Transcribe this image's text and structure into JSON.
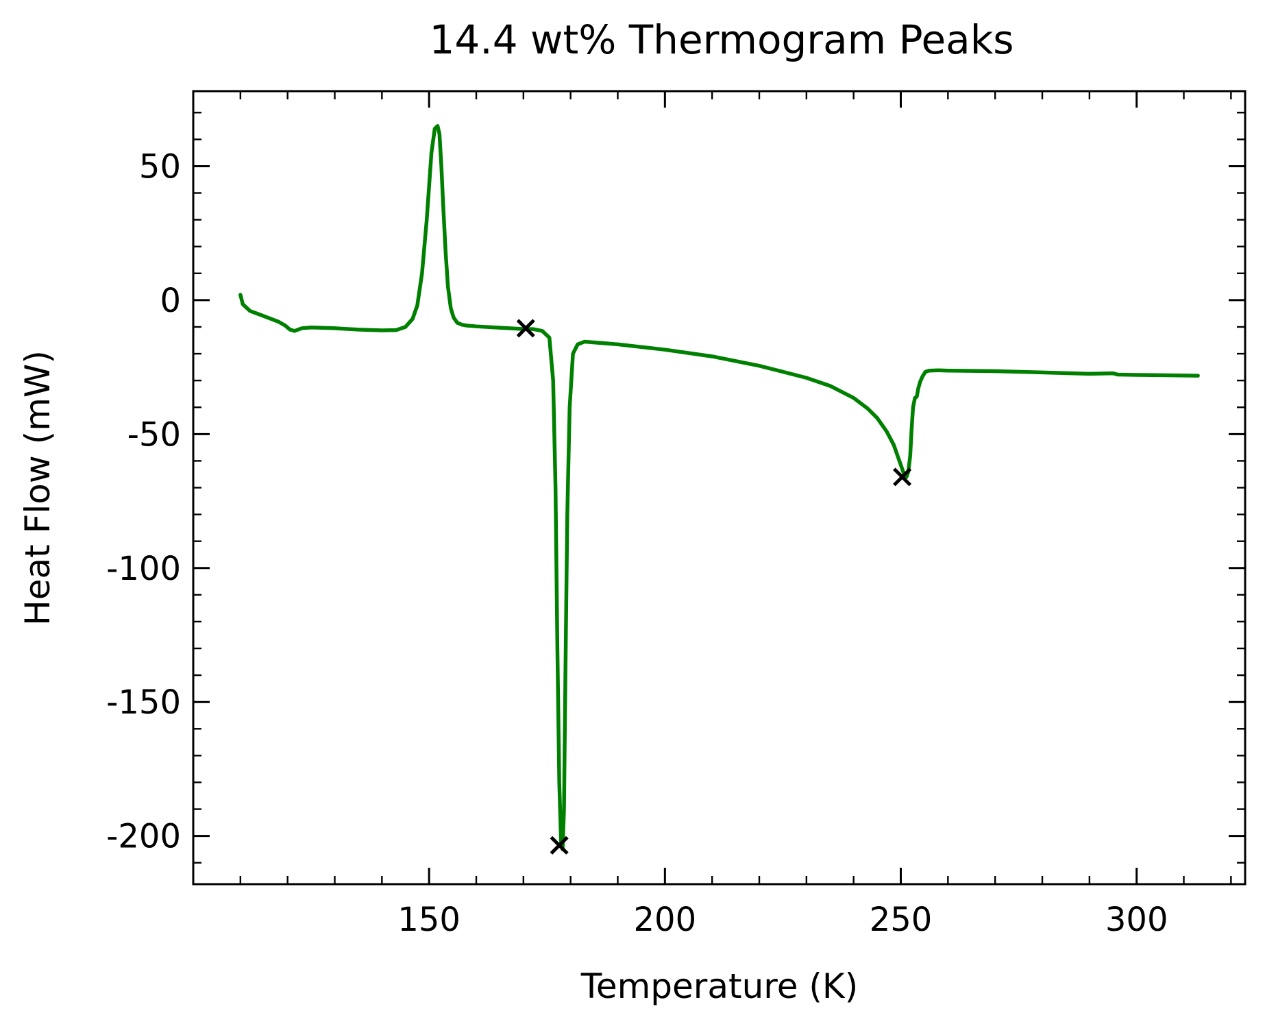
{
  "chart_data": {
    "type": "line",
    "title": "14.4 wt% Thermogram Peaks",
    "xlabel": "Temperature (K)",
    "ylabel": "Heat Flow (mW)",
    "xlim": [
      100,
      323
    ],
    "ylim": [
      -218,
      78
    ],
    "xticks": [
      150,
      200,
      250,
      300
    ],
    "xtick_labels": [
      "150",
      "200",
      "250",
      "300"
    ],
    "yticks": [
      50,
      0,
      -50,
      -100,
      -150,
      -200
    ],
    "ytick_labels": [
      "50",
      "0",
      "-50",
      "-100",
      "-150",
      "-200"
    ],
    "grid": false,
    "line_color": "#008000",
    "marker_color": "#000000",
    "series": [
      {
        "x": [
          110,
          110.5,
          112,
          115,
          118,
          119.5,
          120.5,
          121.5,
          123,
          125,
          130,
          135,
          140,
          143,
          145,
          146.5,
          147.5,
          148.5,
          149.5,
          150.5,
          151.2,
          151.8,
          152.2,
          152.6,
          153,
          153.5,
          154,
          154.6,
          155.2,
          156,
          157,
          158,
          160,
          165,
          170,
          172,
          174,
          175.5,
          176.3,
          176.8,
          177.2,
          177.6,
          178,
          178.3,
          178.6,
          178.9,
          179.3,
          179.8,
          180.5,
          181.5,
          183,
          190,
          200,
          210,
          220,
          230,
          235,
          240,
          243,
          245,
          247,
          248.5,
          249.5,
          250.3,
          250.8,
          251.2,
          251.6,
          252,
          252.3,
          252.6,
          253,
          253.4,
          253.7,
          254.1,
          254.6,
          255.2,
          256,
          258,
          260,
          270,
          280,
          290,
          295,
          296,
          300,
          305,
          313
        ],
        "y": [
          2,
          -1.5,
          -4,
          -6,
          -8,
          -9.5,
          -11,
          -11.5,
          -10.5,
          -10.2,
          -10.5,
          -11,
          -11.3,
          -11.2,
          -10,
          -7,
          -2,
          10,
          30,
          55,
          64,
          65,
          62,
          50,
          35,
          18,
          5,
          -3,
          -6.5,
          -8.5,
          -9.2,
          -9.5,
          -9.8,
          -10.3,
          -10.8,
          -10.8,
          -11.5,
          -14,
          -30,
          -70,
          -130,
          -180,
          -203,
          -205,
          -190,
          -140,
          -80,
          -40,
          -20,
          -16.5,
          -15.5,
          -16.5,
          -18.5,
          -21,
          -24.5,
          -29,
          -32,
          -36.5,
          -40.5,
          -44,
          -49,
          -54,
          -59,
          -63,
          -65.5,
          -66,
          -64,
          -58,
          -48,
          -40,
          -36.5,
          -36,
          -33,
          -30.5,
          -28.5,
          -26.8,
          -26.3,
          -26.2,
          -26.3,
          -26.5,
          -27,
          -27.5,
          -27.3,
          -27.8,
          -27.9,
          -28,
          -28.2
        ]
      }
    ],
    "markers": [
      {
        "x": 170.5,
        "y": -10.5
      },
      {
        "x": 177.6,
        "y": -203.5
      },
      {
        "x": 250.3,
        "y": -66
      }
    ]
  }
}
